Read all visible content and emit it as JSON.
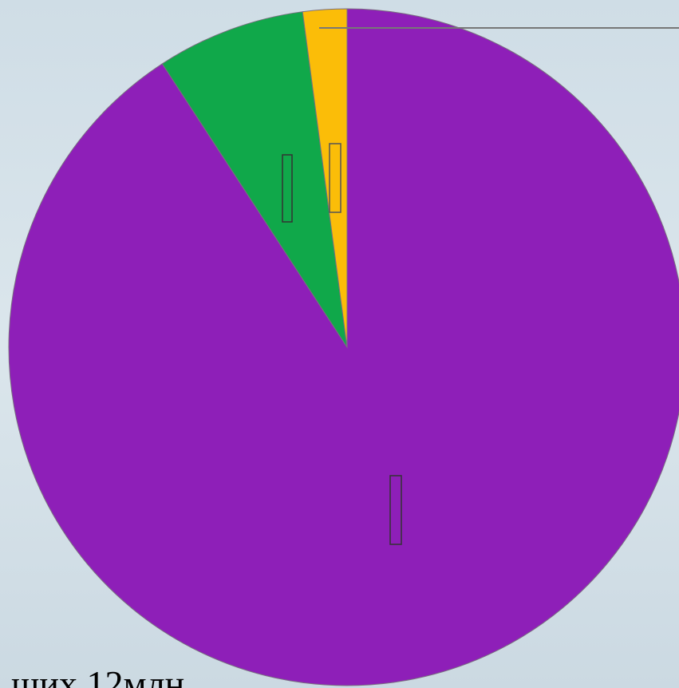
{
  "chart_data": {
    "type": "pie",
    "values": [
      90.8,
      7.1,
      2.1
    ],
    "colors": [
      "#8e1fb8",
      "#10a84a",
      "#fbbd08"
    ],
    "start_angle": 0,
    "direction": "clockwise",
    "annotation": "щих 12млн"
  }
}
